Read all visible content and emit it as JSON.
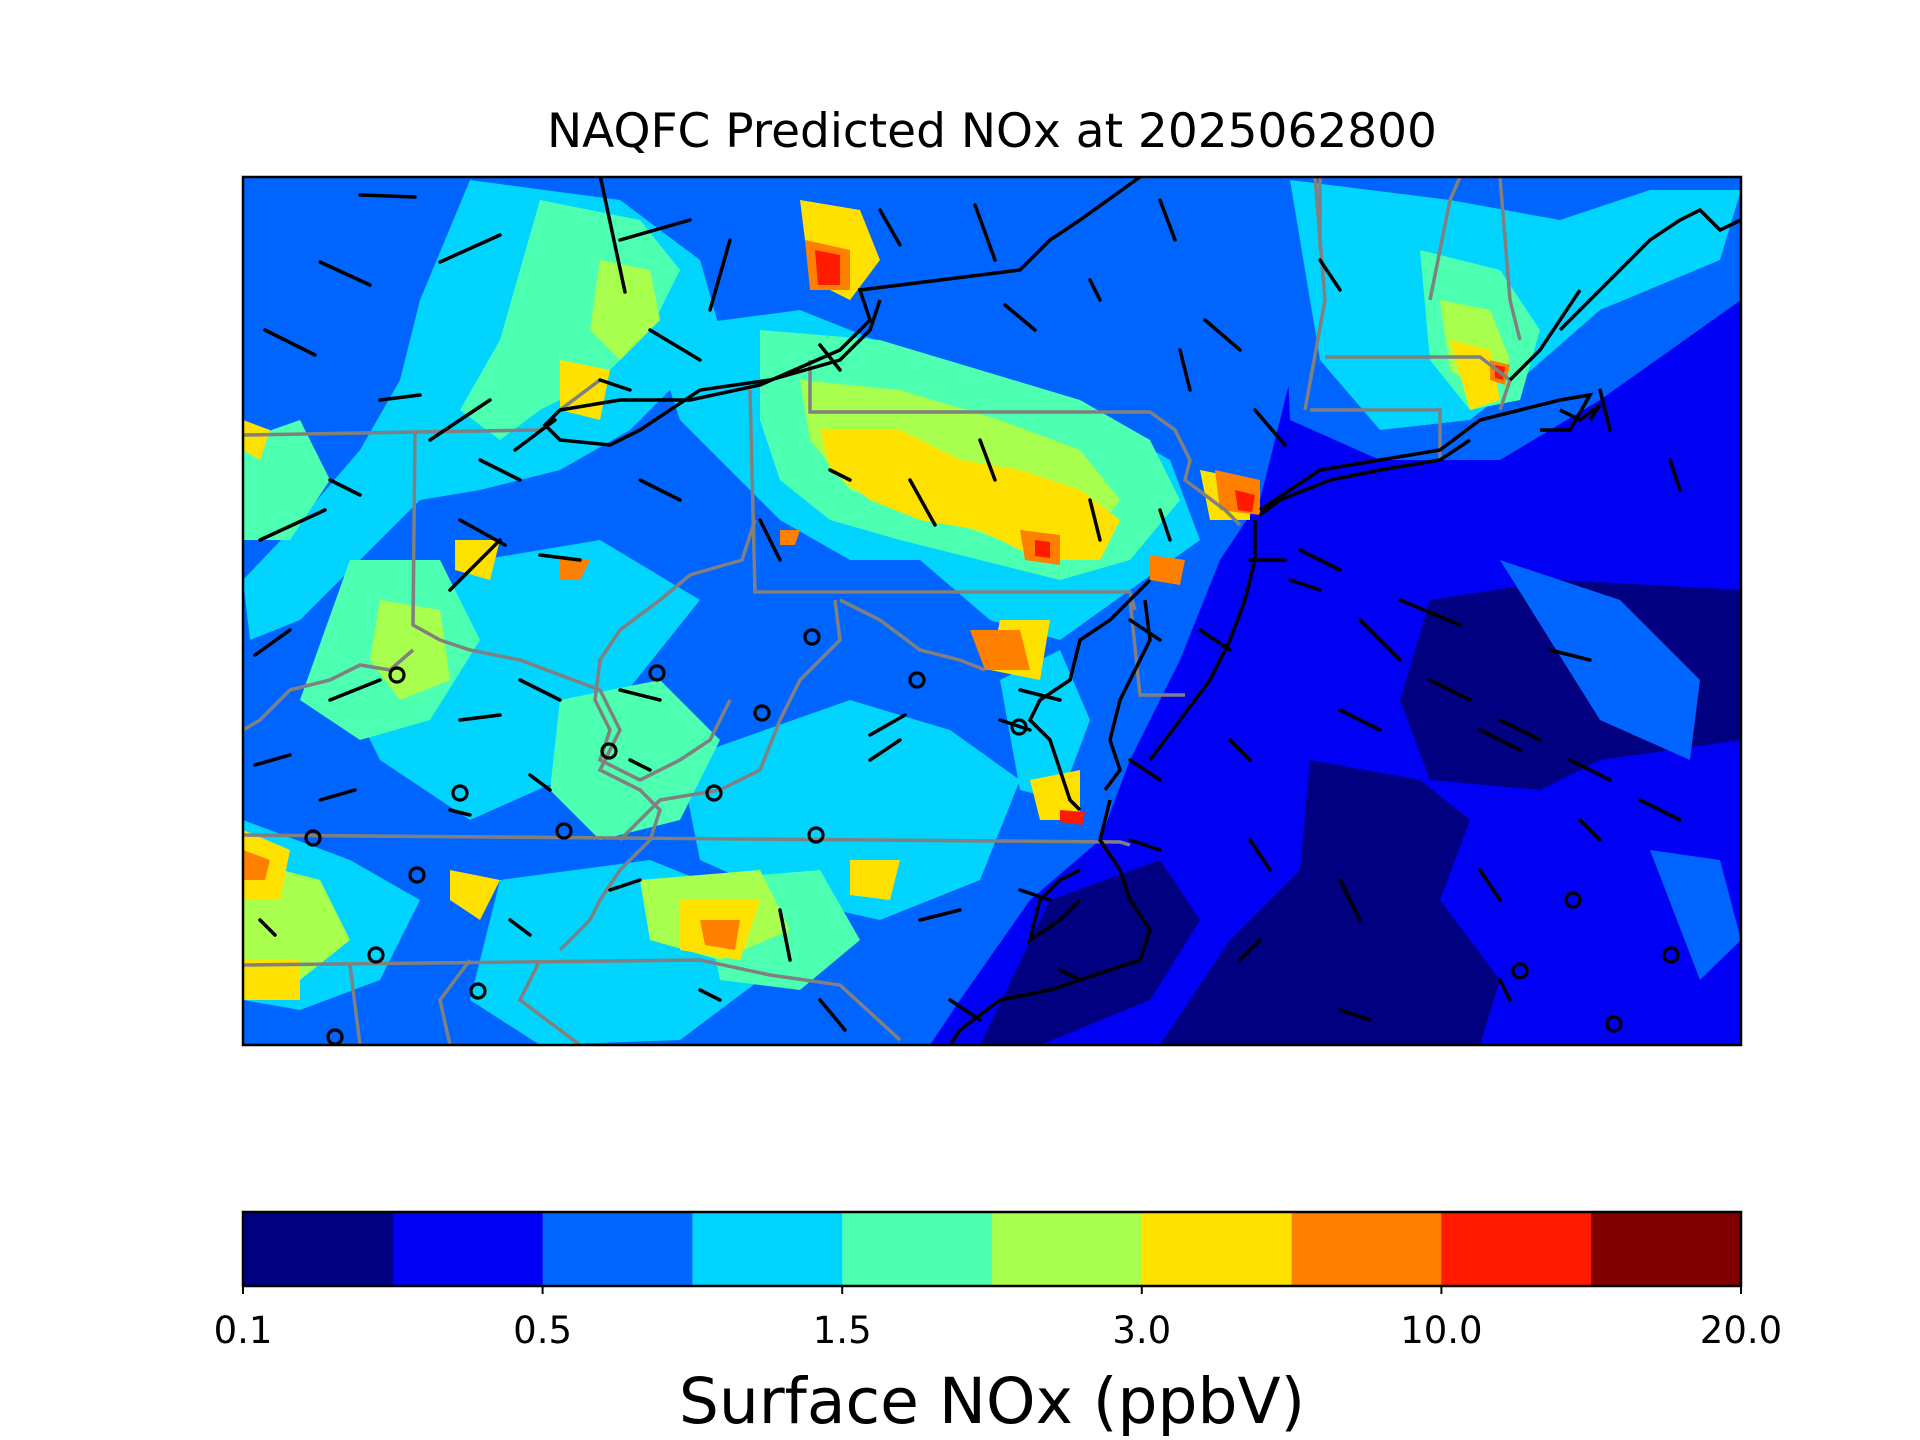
{
  "title": "NAQFC Predicted NOx at 2025062800",
  "colorbar": {
    "label": "Surface NOx (ppbV)",
    "colors": [
      "#000080",
      "#0000f5",
      "#0064ff",
      "#00d4ff",
      "#4dffb0",
      "#a8ff4d",
      "#ffe100",
      "#ff7f00",
      "#ff1a00",
      "#800000"
    ],
    "tick_labels": [
      "0.1",
      "0.5",
      "1.5",
      "3.0",
      "10.0",
      "20.0"
    ],
    "bin_edges": [
      "0.1",
      "0.25",
      "0.5",
      "1.0",
      "1.5",
      "2.0",
      "3.0",
      "5.0",
      "10.0",
      "15.0",
      "20.0"
    ]
  },
  "map": {
    "region": "US Mid-Atlantic and Northeast",
    "background_color": "#0000f5",
    "state_border_color": "#808080",
    "coastline_color": "#000000",
    "wind_barb_color": "#000000",
    "calm_marker": "circle"
  },
  "chart_data": {
    "type": "heatmap",
    "title": "NAQFC Predicted NOx at 2025062800",
    "colorbar_label": "Surface NOx (ppbV)",
    "colorbar_ticks": [
      0.1,
      0.5,
      1.5,
      3.0,
      10.0,
      20.0
    ],
    "levels": [
      0.1,
      0.25,
      0.5,
      1.0,
      1.5,
      2.0,
      3.0,
      5.0,
      10.0,
      15.0,
      20.0
    ],
    "colormap": "jet"
  }
}
